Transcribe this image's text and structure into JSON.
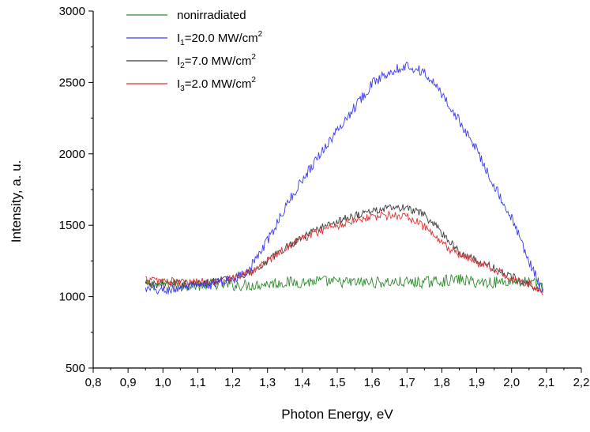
{
  "chart_data": {
    "type": "line",
    "title": "",
    "xlabel": "Photon Energy, eV",
    "ylabel": "Intensity, a. u.",
    "xlim": [
      0.8,
      2.2
    ],
    "ylim": [
      500,
      3000
    ],
    "xticks": [
      "0,8",
      "0,9",
      "1,0",
      "1,1",
      "1,2",
      "1,3",
      "1,4",
      "1,5",
      "1,6",
      "1,7",
      "1,8",
      "1,9",
      "2,0",
      "2,1",
      "2,2"
    ],
    "yticks": [
      "500",
      "1000",
      "1500",
      "2000",
      "2500",
      "3000"
    ],
    "grid": false,
    "legend_position": "top-left",
    "series": [
      {
        "name": "nonirradiated",
        "legend": {
          "base": "nonirradiated",
          "sub": "",
          "mid": "",
          "sup": ""
        },
        "color": "#2e8b2e",
        "x": [
          0.95,
          1.0,
          1.05,
          1.1,
          1.15,
          1.2,
          1.25,
          1.3,
          1.35,
          1.4,
          1.45,
          1.5,
          1.55,
          1.6,
          1.65,
          1.7,
          1.75,
          1.8,
          1.85,
          1.9,
          1.95,
          2.0,
          2.05,
          2.09
        ],
        "values": [
          1080,
          1090,
          1085,
          1080,
          1090,
          1080,
          1080,
          1090,
          1100,
          1100,
          1110,
          1100,
          1100,
          1100,
          1100,
          1100,
          1100,
          1110,
          1120,
          1100,
          1100,
          1110,
          1100,
          1080
        ],
        "noise": 40
      },
      {
        "name": "I1=20.0 MW/cm2",
        "legend": {
          "base": "I",
          "sub": "1",
          "mid": "=20.0 MW/cm",
          "sup": "2"
        },
        "color": "#3a3aef",
        "x": [
          0.95,
          1.0,
          1.05,
          1.1,
          1.15,
          1.2,
          1.25,
          1.3,
          1.35,
          1.4,
          1.45,
          1.5,
          1.55,
          1.6,
          1.65,
          1.7,
          1.75,
          1.8,
          1.85,
          1.9,
          1.95,
          2.0,
          2.05,
          2.09
        ],
        "values": [
          1050,
          1040,
          1060,
          1070,
          1090,
          1120,
          1200,
          1390,
          1620,
          1820,
          2000,
          2160,
          2330,
          2490,
          2580,
          2620,
          2570,
          2420,
          2230,
          2030,
          1780,
          1550,
          1250,
          1030
        ],
        "noise": 35
      },
      {
        "name": "I2=7.0 MW/cm2",
        "legend": {
          "base": "I",
          "sub": "2",
          "mid": "=7.0 MW/cm",
          "sup": "2"
        },
        "color": "#3a3a3a",
        "x": [
          0.95,
          1.0,
          1.05,
          1.1,
          1.15,
          1.2,
          1.25,
          1.3,
          1.35,
          1.4,
          1.45,
          1.5,
          1.55,
          1.6,
          1.65,
          1.7,
          1.75,
          1.8,
          1.85,
          1.9,
          1.95,
          2.0,
          2.05,
          2.09
        ],
        "values": [
          1090,
          1085,
          1090,
          1090,
          1110,
          1130,
          1170,
          1250,
          1340,
          1420,
          1480,
          1530,
          1570,
          1600,
          1620,
          1620,
          1570,
          1450,
          1310,
          1250,
          1200,
          1140,
          1090,
          1030
        ],
        "noise": 28
      },
      {
        "name": "I3=2.0 MW/cm2",
        "legend": {
          "base": "I",
          "sub": "3",
          "mid": "=2.0 MW/cm",
          "sup": "2"
        },
        "color": "#e23030",
        "x": [
          0.95,
          1.0,
          1.05,
          1.1,
          1.15,
          1.2,
          1.25,
          1.3,
          1.35,
          1.4,
          1.45,
          1.5,
          1.55,
          1.6,
          1.65,
          1.7,
          1.75,
          1.8,
          1.85,
          1.9,
          1.95,
          2.0,
          2.05,
          2.09
        ],
        "values": [
          1120,
          1110,
          1100,
          1100,
          1110,
          1130,
          1170,
          1250,
          1340,
          1410,
          1460,
          1500,
          1540,
          1560,
          1570,
          1560,
          1490,
          1370,
          1290,
          1240,
          1190,
          1130,
          1090,
          1020
        ],
        "noise": 30
      }
    ]
  }
}
